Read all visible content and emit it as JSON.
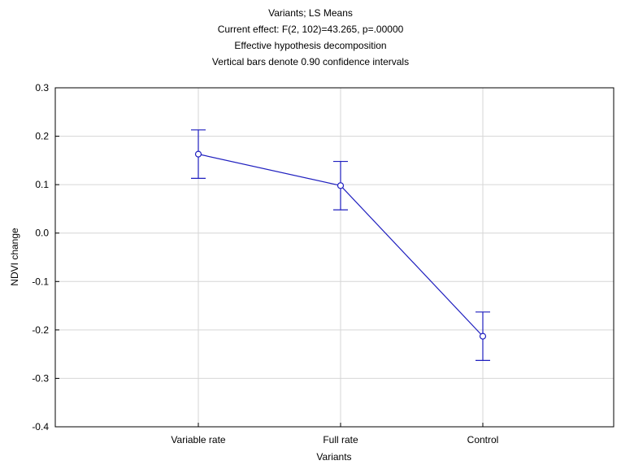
{
  "chart_data": {
    "type": "line",
    "title_lines": [
      "Variants; LS Means",
      "Current effect: F(2, 102)=43.265, p=.00000",
      "Effective hypothesis decomposition",
      "Vertical bars denote 0.90 confidence intervals"
    ],
    "xlabel": "Variants",
    "ylabel": "NDVI change",
    "categories": [
      "Variable rate",
      "Full rate",
      "Control"
    ],
    "series": [
      {
        "values": [
          0.163,
          0.098,
          -0.213
        ],
        "ci_low": [
          0.113,
          0.048,
          -0.263
        ],
        "ci_high": [
          0.213,
          0.148,
          -0.163
        ]
      }
    ],
    "ylim": [
      -0.4,
      0.3
    ],
    "yticks": [
      0.3,
      0.2,
      0.1,
      0.0,
      -0.1,
      -0.2,
      -0.3,
      -0.4
    ],
    "ytick_labels": [
      "0.3",
      "0.2",
      "0.1",
      "0.0",
      "-0.1",
      "-0.2",
      "-0.3",
      "-0.4"
    ],
    "grid": true,
    "line_color": "#1f1fbf"
  }
}
